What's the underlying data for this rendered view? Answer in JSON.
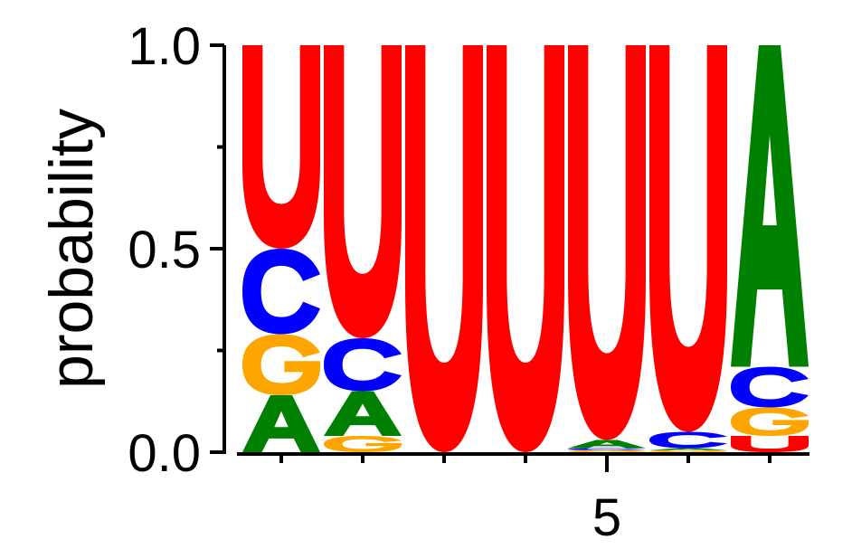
{
  "chart_data": {
    "type": "sequence-logo",
    "title": "",
    "xlabel": "",
    "ylabel": "probability",
    "ylim": [
      0,
      1
    ],
    "yticks": [
      {
        "value": 0,
        "label": "0.0"
      },
      {
        "value": 0.5,
        "label": "0.5"
      },
      {
        "value": 1,
        "label": "1.0"
      }
    ],
    "xticks_labeled": [
      {
        "position": 5,
        "label": "5"
      }
    ],
    "positions": [
      1,
      2,
      3,
      4,
      5,
      6,
      7
    ],
    "colors": {
      "A": "#008000",
      "C": "#0000ff",
      "G": "#ffa500",
      "U": "#ff0000"
    },
    "stacks": [
      [
        {
          "letter": "A",
          "value": 0.14
        },
        {
          "letter": "G",
          "value": 0.15
        },
        {
          "letter": "C",
          "value": 0.21
        },
        {
          "letter": "U",
          "value": 0.5
        }
      ],
      [
        {
          "letter": "G",
          "value": 0.04
        },
        {
          "letter": "A",
          "value": 0.11
        },
        {
          "letter": "C",
          "value": 0.13
        },
        {
          "letter": "U",
          "value": 0.72
        }
      ],
      [
        {
          "letter": "U",
          "value": 1.0
        }
      ],
      [
        {
          "letter": "U",
          "value": 1.0
        }
      ],
      [
        {
          "letter": "G",
          "value": 0.005
        },
        {
          "letter": "C",
          "value": 0.005
        },
        {
          "letter": "A",
          "value": 0.02
        },
        {
          "letter": "U",
          "value": 0.97
        }
      ],
      [
        {
          "letter": "G",
          "value": 0.005
        },
        {
          "letter": "A",
          "value": 0.005
        },
        {
          "letter": "C",
          "value": 0.04
        },
        {
          "letter": "U",
          "value": 0.95
        }
      ],
      [
        {
          "letter": "U",
          "value": 0.04
        },
        {
          "letter": "G",
          "value": 0.07
        },
        {
          "letter": "C",
          "value": 0.1
        },
        {
          "letter": "A",
          "value": 0.79
        }
      ]
    ]
  }
}
